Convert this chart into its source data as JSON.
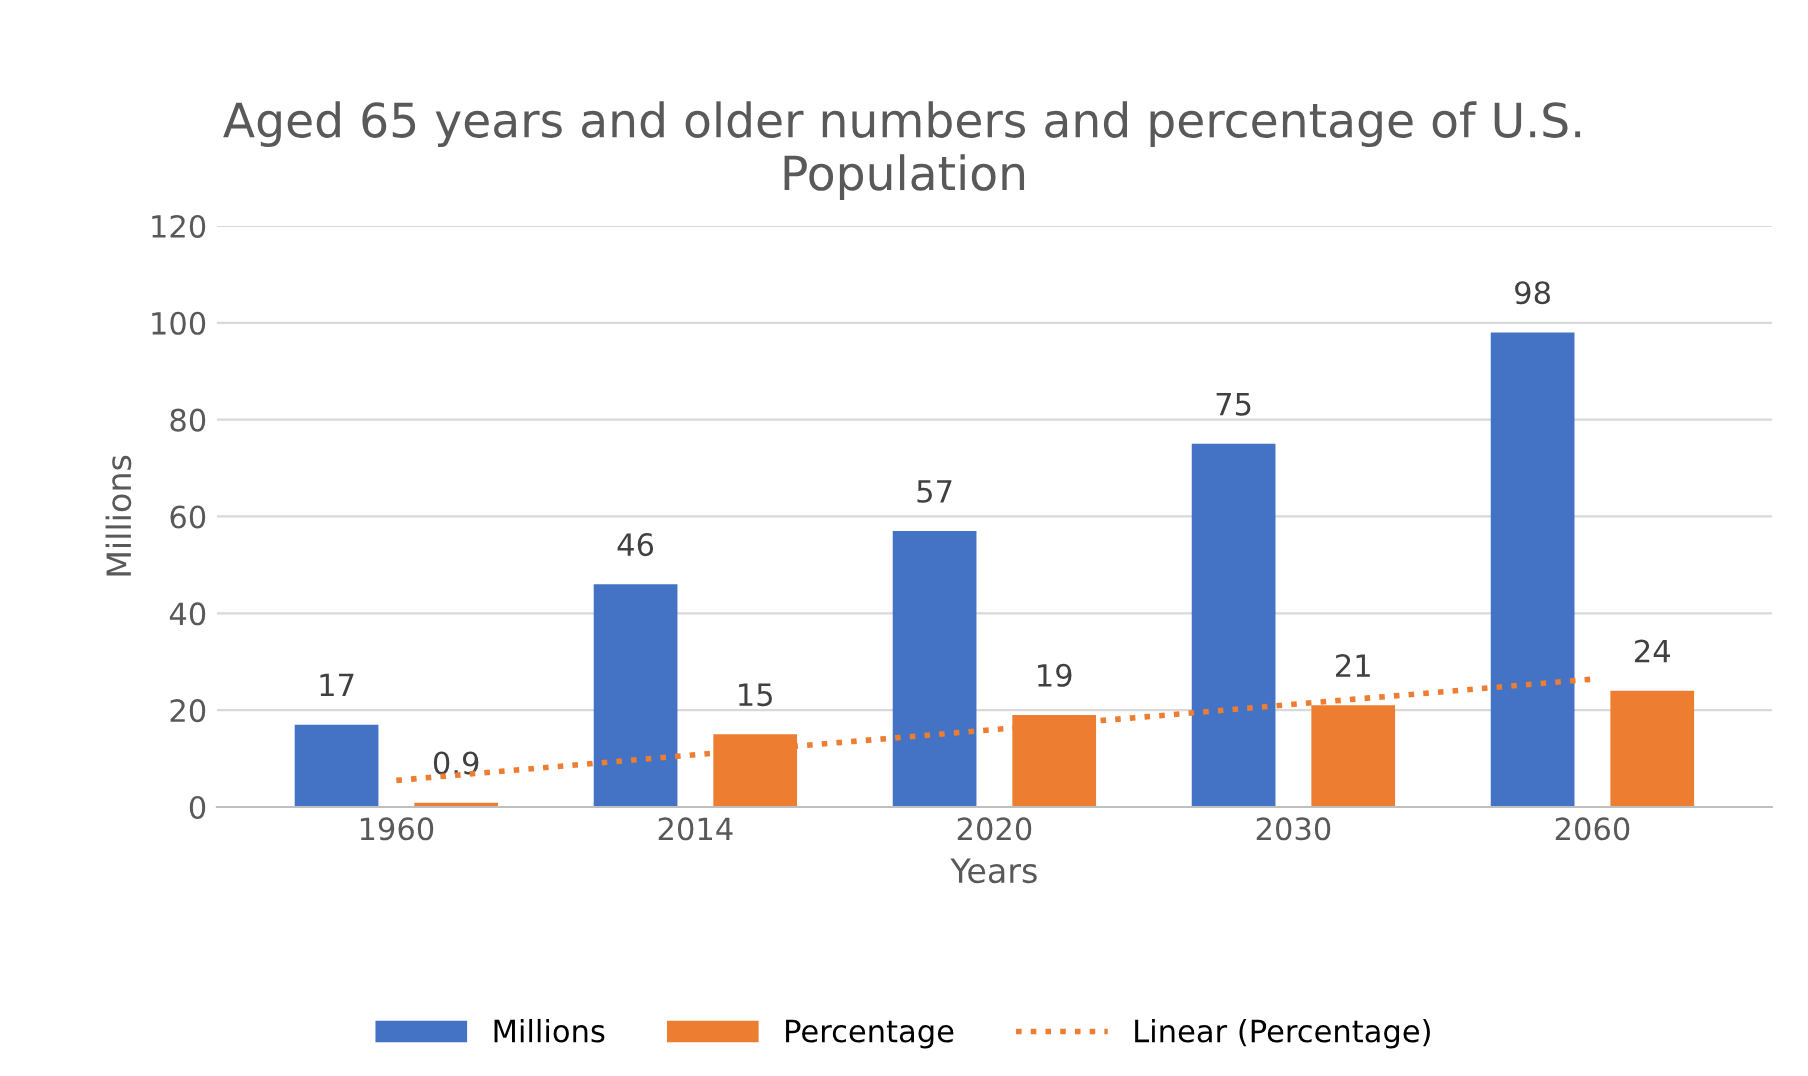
{
  "chart_data": {
    "type": "bar",
    "title": "Aged 65 years and older numbers and percentage of U.S. Population",
    "xlabel": "Years",
    "ylabel": "Millions",
    "categories": [
      "1960",
      "2014",
      "2020",
      "2030",
      "2060"
    ],
    "series": [
      {
        "name": "Millions",
        "color": "#4472c4",
        "values": [
          17,
          46,
          57,
          75,
          98
        ],
        "value_labels": [
          "17",
          "46",
          "57",
          "75",
          "98"
        ]
      },
      {
        "name": "Percentage",
        "color": "#ed7d31",
        "values": [
          0.9,
          15,
          19,
          21,
          24
        ],
        "value_labels": [
          "0.9",
          "15",
          "19",
          "21",
          "24"
        ]
      },
      {
        "name": "Linear (Percentage)",
        "type": "line",
        "line_style": "dotted",
        "color": "#ed7d31",
        "values": [
          5.5,
          10.8,
          16.0,
          21.2,
          26.4
        ]
      }
    ],
    "ylim": [
      0,
      120
    ],
    "yticks": [
      0,
      20,
      40,
      60,
      80,
      100,
      120
    ],
    "grid": "y",
    "legend": "bottom"
  }
}
